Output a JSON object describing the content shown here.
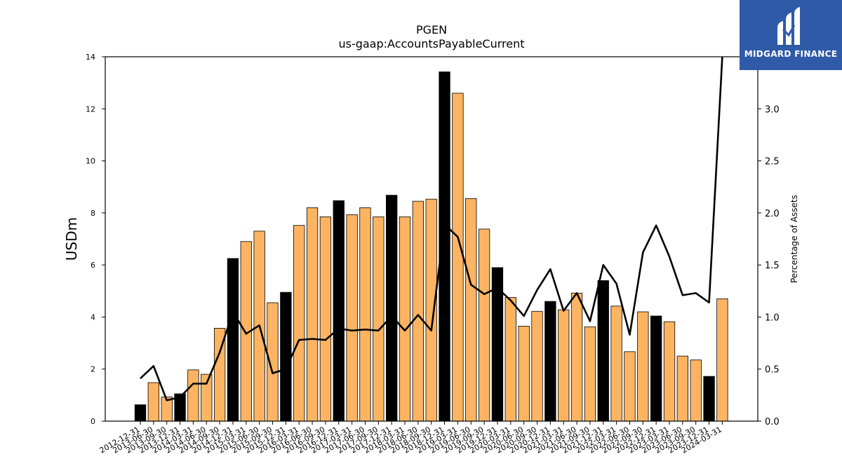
{
  "brand": {
    "name": "MIDGARD FINANCE",
    "icon": "midgard-finance-logo-icon"
  },
  "chart_data": {
    "type": "bar",
    "title": "PGEN",
    "subtitle": "us-gaap:AccountsPayableCurrent",
    "ylabel": "USDm",
    "y2label": "Percentage of Assets",
    "ylim": [
      0,
      14
    ],
    "y2lim": [
      0,
      3.5
    ],
    "yticks": [
      "0",
      "2",
      "4",
      "6",
      "8",
      "10",
      "12",
      "14"
    ],
    "y2ticks": [
      "0.0",
      "0.5",
      "1.0",
      "1.5",
      "2.0",
      "2.5",
      "3.0"
    ],
    "grid": false,
    "colors": {
      "annual_bar": "#000000",
      "quarter_bar": "#fdb462",
      "line": "#000000"
    },
    "categories": [
      "2012-12-31",
      "2013-06-30",
      "2013-09-30",
      "2013-12-31",
      "2014-03-31",
      "2014-06-30",
      "2014-09-30",
      "2014-12-31",
      "2015-03-31",
      "2015-06-30",
      "2015-09-30",
      "2015-12-31",
      "2016-03-31",
      "2016-06-30",
      "2016-09-30",
      "2016-12-31",
      "2017-03-31",
      "2017-06-30",
      "2017-09-30",
      "2017-12-31",
      "2018-03-31",
      "2018-06-30",
      "2018-09-30",
      "2018-12-31",
      "2019-03-31",
      "2019-06-30",
      "2019-09-30",
      "2019-12-31",
      "2020-03-31",
      "2020-06-30",
      "2020-09-30",
      "2020-12-31",
      "2021-03-31",
      "2021-06-30",
      "2021-09-30",
      "2021-12-31",
      "2022-03-31",
      "2022-06-30",
      "2022-09-30",
      "2022-12-31",
      "2023-03-31",
      "2023-06-30",
      "2023-09-30",
      "2023-12-31",
      "2024-03-31"
    ],
    "annual": [
      true,
      false,
      false,
      true,
      false,
      false,
      false,
      true,
      false,
      false,
      false,
      true,
      false,
      false,
      false,
      true,
      false,
      false,
      false,
      true,
      false,
      false,
      false,
      true,
      false,
      false,
      false,
      true,
      false,
      false,
      false,
      true,
      false,
      false,
      false,
      true,
      false,
      false,
      false,
      true,
      false,
      false,
      false,
      true,
      false
    ],
    "values": [
      0.63,
      1.48,
      0.93,
      1.05,
      1.97,
      1.8,
      3.57,
      6.25,
      6.9,
      7.3,
      4.55,
      4.95,
      7.52,
      8.2,
      7.85,
      8.47,
      7.93,
      8.2,
      7.85,
      8.68,
      7.85,
      8.45,
      8.53,
      13.42,
      12.6,
      8.55,
      7.38,
      5.9,
      4.75,
      3.65,
      4.22,
      4.6,
      4.28,
      4.92,
      3.62,
      5.4,
      4.42,
      2.67,
      4.2,
      4.04,
      3.82,
      2.5,
      2.35,
      1.72,
      4.7
    ],
    "pct_assets": [
      0.41,
      0.53,
      0.2,
      0.23,
      0.36,
      0.36,
      0.66,
      1.05,
      0.84,
      0.92,
      0.46,
      0.5,
      0.78,
      0.79,
      0.78,
      0.89,
      0.87,
      0.88,
      0.87,
      1.01,
      0.87,
      1.02,
      0.87,
      1.89,
      1.77,
      1.31,
      1.22,
      1.28,
      1.16,
      1.01,
      1.26,
      1.46,
      1.06,
      1.23,
      0.96,
      1.5,
      1.32,
      0.83,
      1.62,
      1.88,
      1.58,
      1.21,
      1.23,
      1.14,
      3.55
    ]
  }
}
